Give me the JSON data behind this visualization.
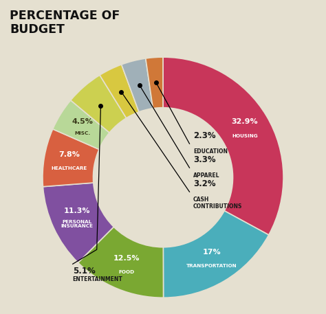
{
  "title": "PERCENTAGE OF\nBUDGET",
  "background_color": "#e5e0d0",
  "slices": [
    {
      "label": "HOUSING",
      "pct": 32.9,
      "color": "#c8365a",
      "text_color": "#ffffff"
    },
    {
      "label": "TRANSPORTATION",
      "pct": 17.0,
      "color": "#4aaebb",
      "text_color": "#ffffff"
    },
    {
      "label": "FOOD",
      "pct": 12.5,
      "color": "#7aa832",
      "text_color": "#ffffff"
    },
    {
      "label": "PERSONAL\nINSURANCE",
      "pct": 11.3,
      "color": "#8050a0",
      "text_color": "#ffffff"
    },
    {
      "label": "HEALTHCARE",
      "pct": 7.8,
      "color": "#d86040",
      "text_color": "#ffffff"
    },
    {
      "label": "MISC.",
      "pct": 4.5,
      "color": "#b8d898",
      "text_color": "#3a3a1a"
    },
    {
      "label": "ENTERTAINMENT",
      "pct": 5.1,
      "color": "#ccd050",
      "text_color": "#1a1a1a"
    },
    {
      "label": "CASH\nCONTRIBUTIONS",
      "pct": 3.2,
      "color": "#d8c840",
      "text_color": "#1a1a1a"
    },
    {
      "label": "APPAREL",
      "pct": 3.3,
      "color": "#a0b0b8",
      "text_color": "#1a1a1a"
    },
    {
      "label": "EDUCATION",
      "pct": 2.3,
      "color": "#d07838",
      "text_color": "#1a1a1a"
    }
  ]
}
